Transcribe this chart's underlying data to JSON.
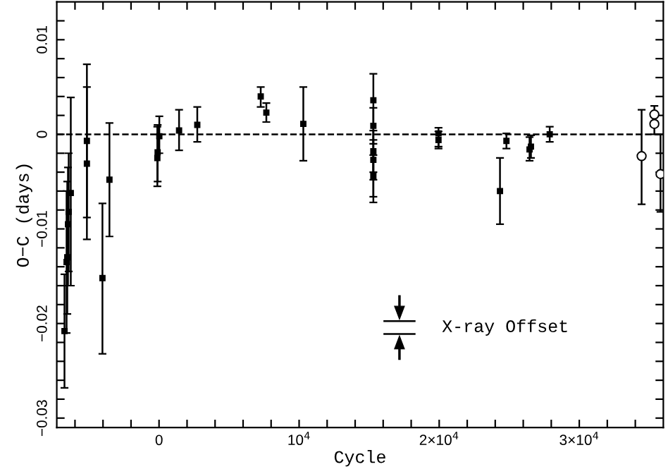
{
  "chart_data": {
    "type": "scatter",
    "xlabel": "Cycle",
    "ylabel": "O−C (days)",
    "xlim": [
      -7300,
      36000
    ],
    "ylim": [
      -0.031,
      0.014
    ],
    "xticks": [
      {
        "value": -6000,
        "label": null
      },
      {
        "value": -4000,
        "label": null
      },
      {
        "value": -2000,
        "label": null
      },
      0,
      {
        "value": 2000,
        "label": null
      },
      {
        "value": 4000,
        "label": null
      },
      {
        "value": 6000,
        "label": null
      },
      {
        "value": 8000,
        "label": null
      },
      {
        "value": 10000,
        "label": "10$^{4}$"
      },
      {
        "value": 12000,
        "label": null
      },
      {
        "value": 14000,
        "label": null
      },
      {
        "value": 16000,
        "label": null
      },
      {
        "value": 18000,
        "label": null
      },
      {
        "value": 20000,
        "label": "2×10$^{4}$"
      },
      {
        "value": 22000,
        "label": null
      },
      {
        "value": 24000,
        "label": null
      },
      {
        "value": 26000,
        "label": null
      },
      {
        "value": 28000,
        "label": null
      },
      {
        "value": 30000,
        "label": "3×10$^{4}$"
      },
      {
        "value": 32000,
        "label": null
      },
      {
        "value": 34000,
        "label": null
      }
    ],
    "yticks": [
      {
        "value": -0.03,
        "label": "−0.03"
      },
      {
        "value": -0.028,
        "label": null
      },
      {
        "value": -0.026,
        "label": null
      },
      {
        "value": -0.024,
        "label": null
      },
      {
        "value": -0.022,
        "label": null
      },
      {
        "value": -0.02,
        "label": "−0.02"
      },
      {
        "value": -0.018,
        "label": null
      },
      {
        "value": -0.016,
        "label": null
      },
      {
        "value": -0.014,
        "label": null
      },
      {
        "value": -0.012,
        "label": null
      },
      {
        "value": -0.01,
        "label": "−0.01"
      },
      {
        "value": -0.008,
        "label": null
      },
      {
        "value": -0.006,
        "label": null
      },
      {
        "value": -0.004,
        "label": null
      },
      {
        "value": -0.002,
        "label": null
      },
      0,
      {
        "value": 0.002,
        "label": null
      },
      {
        "value": 0.004,
        "label": null
      },
      {
        "value": 0.006,
        "label": null
      },
      {
        "value": 0.008,
        "label": null
      },
      {
        "value": 0.01,
        "label": "0.01"
      },
      {
        "value": 0.012,
        "label": null
      }
    ],
    "grid": false,
    "ref_lines": [
      {
        "axis": "y",
        "value": 0,
        "line_style": "dashed",
        "color": "#000000"
      }
    ],
    "annotations": [
      "X-ray Offset"
    ],
    "series": [
      {
        "color": "#000000",
        "marker": "square",
        "x": [
          -6750,
          -6600,
          -6550,
          -6500,
          -6450,
          -6300,
          -5150,
          -5150,
          -4040,
          -3540,
          -120,
          -100,
          20,
          1430,
          2730,
          7260,
          7660,
          10300,
          15300,
          15300,
          15300,
          15300,
          15300,
          19950,
          19950,
          24340,
          24800,
          26450,
          26550,
          27890
        ],
        "values": [
          -0.0208,
          -0.0135,
          -0.013,
          -0.0095,
          -0.0082,
          -0.0062,
          -0.0007,
          -0.0031,
          -0.0152,
          -0.0048,
          -0.0025,
          -0.0019,
          -0.0002,
          0.0004,
          0.001,
          0.004,
          0.0023,
          0.0011,
          0.0036,
          0.0009,
          -0.0018,
          -0.0027,
          -0.0044,
          0.0001,
          -0.0006,
          -0.006,
          -0.0007,
          -0.0016,
          -0.0013,
          0.0
        ],
        "errors": [
          [
            -0.0268,
            -0.0148
          ],
          [
            -0.021,
            -0.006
          ],
          [
            -0.019,
            -0.005
          ],
          [
            -0.016,
            -0.0035
          ],
          [
            -0.0145,
            -0.002
          ],
          [
            -0.016,
            0.0039
          ],
          [
            -0.0088,
            0.005
          ],
          [
            -0.0111,
            0.0074
          ],
          [
            -0.0232,
            -0.0073
          ],
          [
            -0.0108,
            0.0012
          ],
          [
            -0.0055,
            0.0008
          ],
          [
            -0.005,
            0.001
          ],
          [
            -0.002,
            0.0019
          ],
          [
            -0.0017,
            0.0026
          ],
          [
            -0.0008,
            0.0029
          ],
          [
            0.0029,
            0.005
          ],
          [
            0.0013,
            0.0033
          ],
          [
            -0.0028,
            0.005
          ],
          [
            -0.0072,
            0.0064
          ],
          [
            -0.001,
            0.0028
          ],
          [
            -0.004,
            0.0004
          ],
          [
            -0.0048,
            -0.0006
          ],
          [
            -0.0066,
            -0.0022
          ],
          [
            -0.0013,
            0.0007
          ],
          [
            -0.0015,
            0.0003
          ],
          [
            -0.0095,
            -0.0025
          ],
          [
            -0.0015,
            0.0001
          ],
          [
            -0.0028,
            -0.0003
          ],
          [
            -0.0025,
            -0.0001
          ],
          [
            -0.0008,
            0.0008
          ]
        ]
      },
      {
        "color": "#000000",
        "marker": "circle",
        "x": [
          34450,
          35360,
          35360,
          35800
        ],
        "values": [
          -0.0023,
          0.0021,
          0.0011,
          -0.0042
        ],
        "errors": [
          [
            -0.0074,
            0.0026
          ],
          [
            0.0011,
            0.003
          ],
          [
            0.0,
            0.002
          ],
          [
            -0.0082,
            0.0
          ]
        ]
      }
    ]
  }
}
